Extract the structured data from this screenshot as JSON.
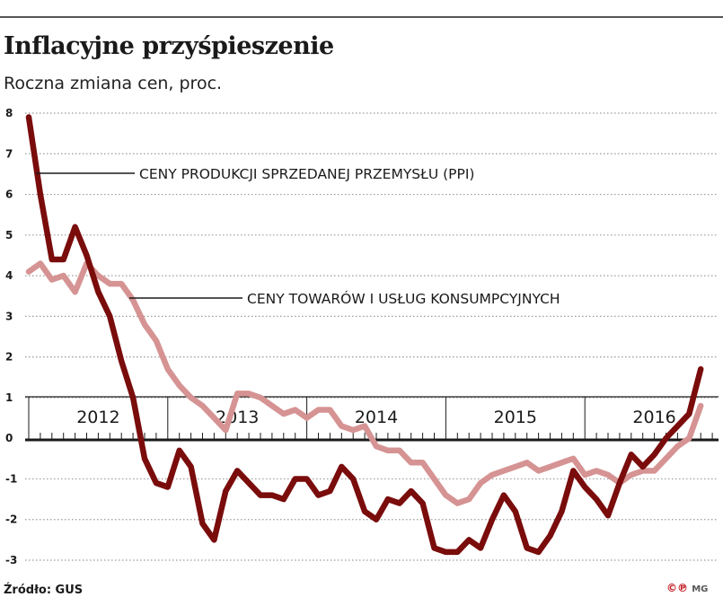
{
  "header": {
    "title": "Inflacyjne przyśpieszenie",
    "subtitle": "Roczna zmiana cen, proc."
  },
  "footer": {
    "source": "Źródło: GUS",
    "logo_mark": "©℗",
    "logo_initials": "MG"
  },
  "colors": {
    "ppi": "#7a0c0c",
    "cpi": "#d69393",
    "grid": "#9a9a9a",
    "axis": "#1a1a1a"
  },
  "chart_data": {
    "type": "line",
    "title": "Inflacyjne przyśpieszenie",
    "subtitle": "Roczna zmiana cen, proc.",
    "xlabel": "",
    "ylabel": "",
    "ylim": [
      -3,
      8
    ],
    "yticks": [
      8,
      7,
      6,
      5,
      4,
      3,
      2,
      1,
      0,
      -1,
      -2,
      -3
    ],
    "grid": true,
    "x_start": 2012.0,
    "x_step_months": 1,
    "year_labels": [
      "2012",
      "2013",
      "2014",
      "2015",
      "2016"
    ],
    "series": [
      {
        "name": "CENY PRODUKCJI SPRZEDANEJ PRZEMYSŁU (PPI)",
        "label": "CENY PRODUKCJI SPRZEDANEJ PRZEMYSŁU (PPI)",
        "values": [
          7.9,
          6.0,
          4.4,
          4.4,
          5.2,
          4.5,
          3.6,
          3.0,
          1.9,
          1.0,
          -0.5,
          -1.1,
          -1.2,
          -0.3,
          -0.7,
          -2.1,
          -2.5,
          -1.3,
          -0.8,
          -1.1,
          -1.4,
          -1.4,
          -1.5,
          -1.0,
          -1.0,
          -1.4,
          -1.3,
          -0.7,
          -1.0,
          -1.8,
          -2.0,
          -1.5,
          -1.6,
          -1.3,
          -1.6,
          -2.7,
          -2.8,
          -2.8,
          -2.5,
          -2.7,
          -2.0,
          -1.4,
          -1.8,
          -2.7,
          -2.8,
          -2.4,
          -1.8,
          -0.8,
          -1.2,
          -1.5,
          -1.9,
          -1.1,
          -0.4,
          -0.7,
          -0.4,
          0.0,
          0.3,
          0.6,
          1.7
        ]
      },
      {
        "name": "CENY TOWARÓW I USŁUG KONSUMPCYJNYCH",
        "label": "CENY TOWARÓW I USŁUG KONSUMPCYJNYCH",
        "values": [
          4.1,
          4.3,
          3.9,
          4.0,
          3.6,
          4.3,
          4.0,
          3.8,
          3.8,
          3.4,
          2.8,
          2.4,
          1.7,
          1.3,
          1.0,
          0.8,
          0.5,
          0.2,
          1.1,
          1.1,
          1.0,
          0.8,
          0.6,
          0.7,
          0.5,
          0.7,
          0.7,
          0.3,
          0.2,
          0.3,
          -0.2,
          -0.3,
          -0.3,
          -0.6,
          -0.6,
          -1.0,
          -1.4,
          -1.6,
          -1.5,
          -1.1,
          -0.9,
          -0.8,
          -0.7,
          -0.6,
          -0.8,
          -0.7,
          -0.6,
          -0.5,
          -0.9,
          -0.8,
          -0.9,
          -1.1,
          -0.9,
          -0.8,
          -0.8,
          -0.5,
          -0.2,
          0.0,
          0.8
        ]
      }
    ]
  }
}
